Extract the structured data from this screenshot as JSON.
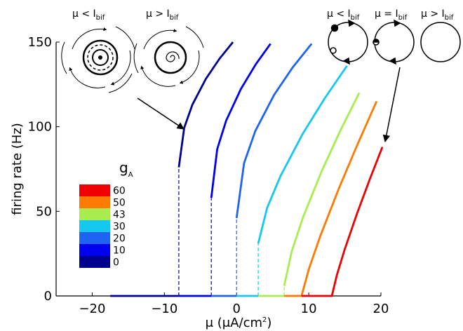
{
  "chart_data": {
    "type": "line",
    "xlabel": [
      "μ (μA/cm",
      "2",
      ")"
    ],
    "ylabel": "firing rate (Hz)",
    "xlim": [
      -25,
      20
    ],
    "ylim": [
      0,
      150
    ],
    "xticks": [
      {
        "value": -20,
        "label": "−20"
      },
      {
        "value": -10,
        "label": "−10"
      },
      0,
      10,
      20
    ],
    "yticks": [
      0,
      50,
      100,
      150
    ],
    "legend_title": [
      "g",
      "A"
    ],
    "annotations": [
      {
        "text": "μ < I",
        "sub": "bif"
      },
      {
        "text": "μ > I",
        "sub": "bif"
      },
      {
        "text": "μ < I",
        "sub": "bif"
      },
      {
        "text": "μ = I",
        "sub": "bif"
      },
      {
        "text": "μ > I",
        "sub": "bif"
      }
    ],
    "series": [
      {
        "name": "0",
        "color": "#00008f",
        "x": [
          -17.5,
          -8,
          -8,
          -8,
          -7.25,
          -6.125,
          -4.25,
          -2.375,
          -0.5
        ],
        "values": [
          0,
          0,
          null,
          76,
          99.4,
          113,
          128.3,
          140.1,
          150
        ]
      },
      {
        "name": "10",
        "color": "#0000f0",
        "x": [
          -8,
          -3.5,
          -3.5,
          -3.5,
          -2.68,
          -1.45,
          0.6,
          2.65,
          4.7
        ],
        "values": [
          0,
          0,
          null,
          58,
          86.8,
          103.5,
          122.3,
          136.8,
          149
        ]
      },
      {
        "name": "20",
        "color": "#1e64f0",
        "x": [
          -3.5,
          0,
          0,
          0,
          1.04,
          2.6,
          5.2,
          7.8,
          10.4
        ],
        "values": [
          0,
          0,
          null,
          46,
          78.5,
          97.5,
          118.8,
          135.2,
          149
        ]
      },
      {
        "name": "30",
        "color": "#14c8f0",
        "x": [
          0,
          3,
          3,
          3,
          4.23,
          6.08,
          9.15,
          12.23,
          15.3
        ],
        "values": [
          0,
          0,
          null,
          31,
          52,
          70.8,
          95.7,
          116.9,
          136
        ]
      },
      {
        "name": "43",
        "color": "#a8ec50",
        "x": [
          3,
          6.6,
          6.6,
          6.6,
          7.64,
          9.2,
          11.8,
          14.4,
          17
        ],
        "values": [
          0,
          0,
          null,
          6,
          26.3,
          46.4,
          73.8,
          97.9,
          120
        ]
      },
      {
        "name": "50",
        "color": "#ff7a00",
        "x": [
          6.6,
          9,
          10.04,
          11.6,
          14.2,
          16.8,
          19.4
        ],
        "values": [
          0,
          0,
          16.2,
          35.4,
          63.8,
          90,
          115
        ]
      },
      {
        "name": "60",
        "color": "#f00000",
        "x": [
          9,
          13.2,
          13.9,
          14.95,
          16.7,
          18.45,
          20.2
        ],
        "values": [
          0,
          0,
          12.4,
          27.1,
          48.8,
          68.9,
          88
        ]
      }
    ]
  }
}
